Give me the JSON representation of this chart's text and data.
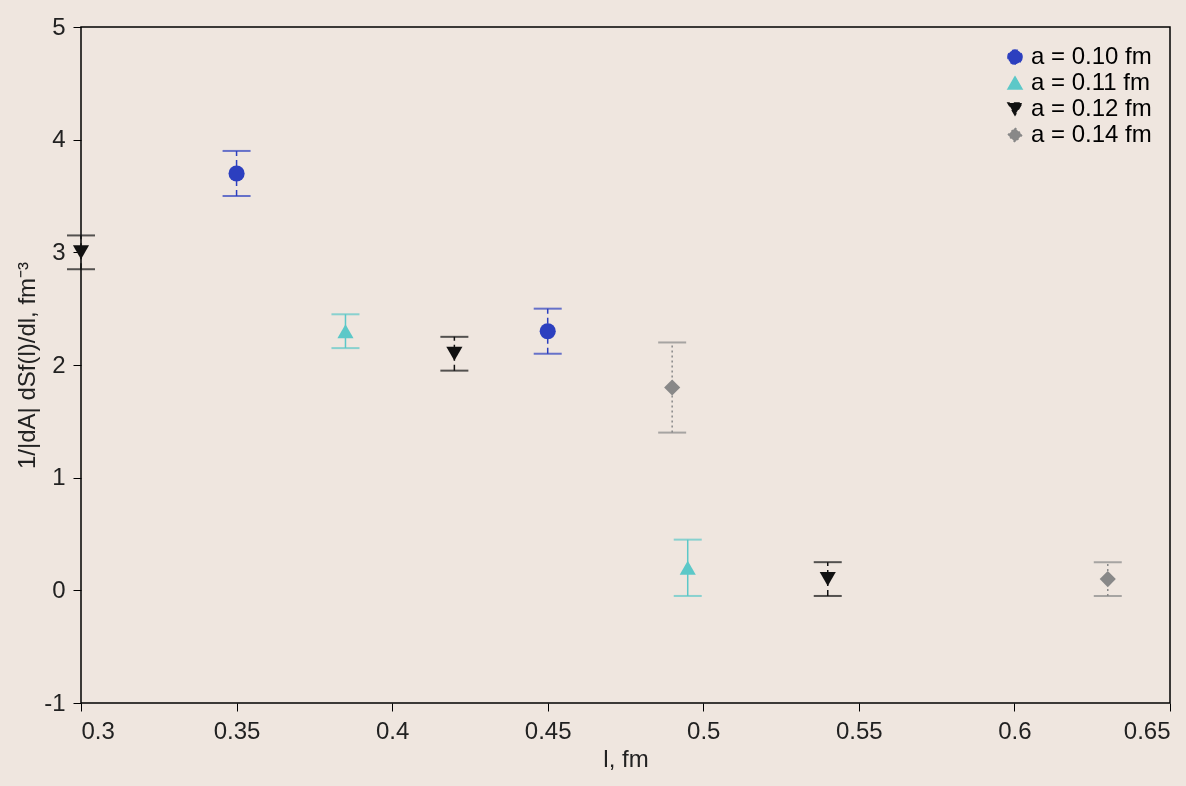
{
  "chart_data": {
    "type": "scatter",
    "xlabel": "l, fm",
    "ylabel": "1/|dA| dSf(l)/dl, fm⁻³",
    "xlim": [
      0.3,
      0.65
    ],
    "xticks": [
      0.3,
      0.35,
      0.4,
      0.45,
      0.5,
      0.55,
      0.6,
      0.65
    ],
    "ylim": [
      -1,
      5
    ],
    "yticks": [
      -1,
      0,
      1,
      2,
      3,
      4,
      5
    ],
    "grid": false,
    "legend": "top right",
    "series": [
      {
        "name": "a = 0.10 fm",
        "color": "#2c3fbf",
        "marker": "circle",
        "line_style": "dashed",
        "x": [
          0.35,
          0.45
        ],
        "values": [
          3.7,
          2.3
        ],
        "errors": [
          0.2,
          0.2
        ]
      },
      {
        "name": "a = 0.11 fm",
        "color": "#5cc8c8",
        "marker": "triangle",
        "line_style": "solid",
        "x": [
          0.385,
          0.495
        ],
        "values": [
          2.3,
          0.2
        ],
        "errors": [
          0.15,
          0.25
        ]
      },
      {
        "name": "a = 0.12 fm",
        "color": "#111111",
        "marker": "triangle_down",
        "line_style": "dashed",
        "x": [
          0.3,
          0.42,
          0.54
        ],
        "values": [
          3.0,
          2.1,
          0.1
        ],
        "errors": [
          0.15,
          0.15,
          0.15
        ]
      },
      {
        "name": "a = 0.14 fm",
        "color": "#888888",
        "marker": "diamond",
        "line_style": "dotted",
        "x": [
          0.49,
          0.63
        ],
        "values": [
          1.8,
          0.1
        ],
        "errors": [
          0.4,
          0.15
        ]
      }
    ]
  }
}
